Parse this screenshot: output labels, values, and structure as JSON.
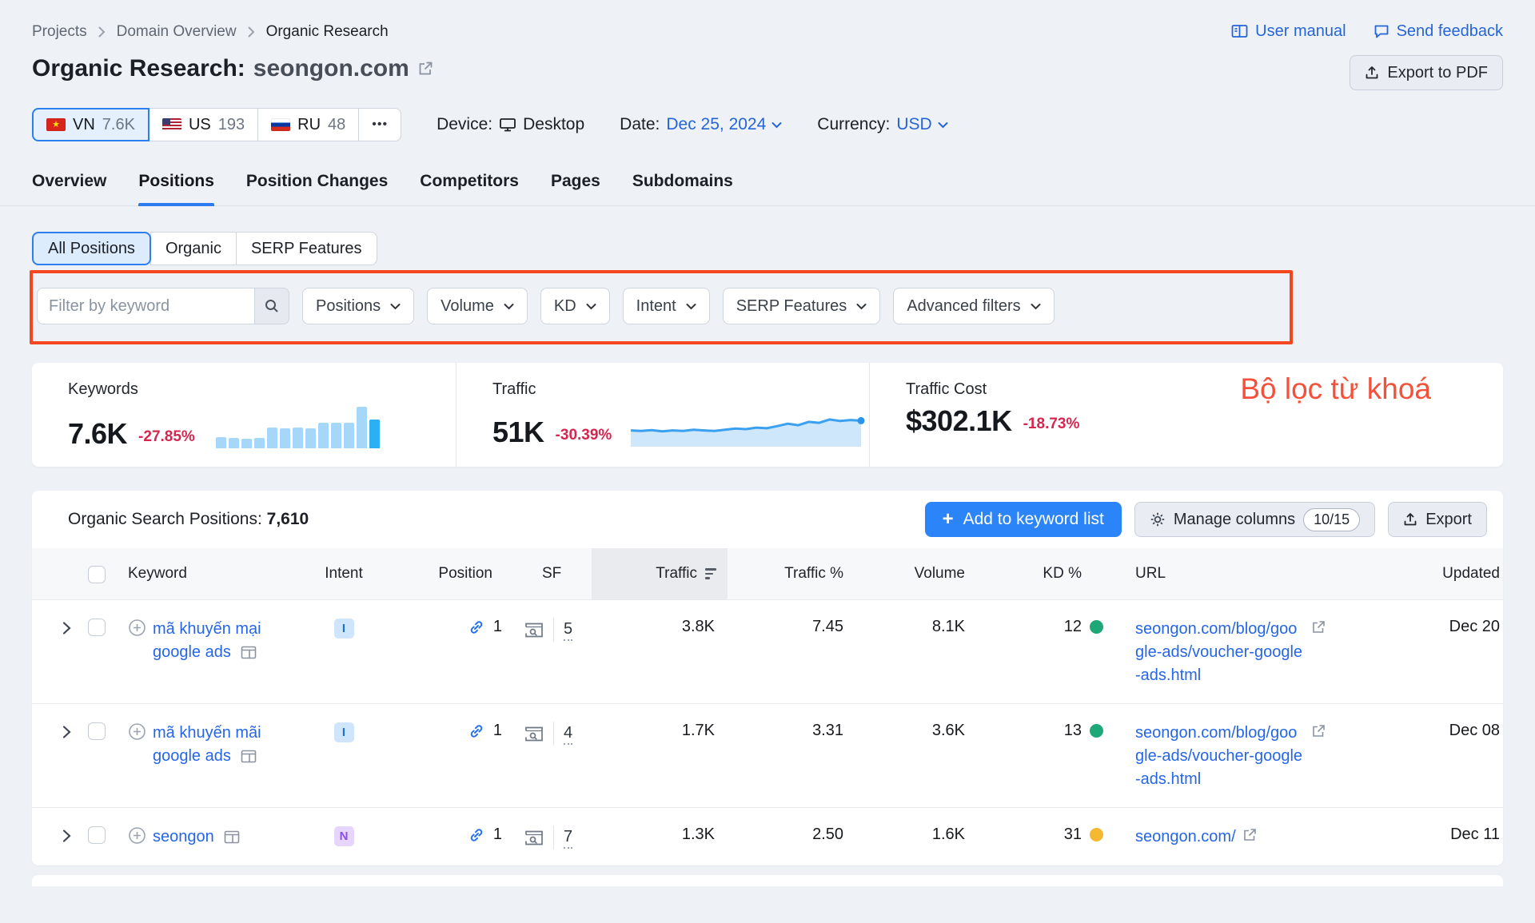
{
  "colors": {
    "accent_blue": "#2b7af0",
    "link_blue": "#2566e8",
    "primary_button_blue": "#2b84f8",
    "negative_red": "#d6264f",
    "annotation_red": "#f4471f",
    "kd_easy_green": "#1ea878",
    "kd_possible_yellow": "#f5b931",
    "intent_informational_bg": "#cfe5fb",
    "intent_informational_fg": "#1b72d0",
    "intent_navigational_bg": "#e6d5fc",
    "intent_navigational_fg": "#8a4fe8"
  },
  "header": {
    "breadcrumb": [
      "Projects",
      "Domain Overview",
      "Organic Research"
    ],
    "user_manual": "User manual",
    "send_feedback": "Send feedback",
    "title_prefix": "Organic Research:",
    "title_domain": "seongon.com",
    "export_pdf": "Export to PDF",
    "countries": [
      {
        "code": "VN",
        "value": "7.6K"
      },
      {
        "code": "US",
        "value": "193"
      },
      {
        "code": "RU",
        "value": "48"
      }
    ],
    "more_label": "•••",
    "device_label": "Device:",
    "device_value": "Desktop",
    "date_label": "Date:",
    "date_value": "Dec 25, 2024",
    "currency_label": "Currency:",
    "currency_value": "USD"
  },
  "nav": {
    "tabs": [
      "Overview",
      "Positions",
      "Position Changes",
      "Competitors",
      "Pages",
      "Subdomains"
    ]
  },
  "segmented": [
    "All Positions",
    "Organic",
    "SERP Features"
  ],
  "filters": {
    "keyword_placeholder": "Filter by keyword",
    "dropdowns": [
      "Positions",
      "Volume",
      "KD",
      "Intent",
      "SERP Features",
      "Advanced filters"
    ]
  },
  "annotation": {
    "text": "Bộ lọc từ khoá"
  },
  "stats": {
    "keywords": {
      "label": "Keywords",
      "value": "7.6K",
      "change": "-27.85%"
    },
    "traffic": {
      "label": "Traffic",
      "value": "51K",
      "change": "-30.39%"
    },
    "traffic_cost": {
      "label": "Traffic Cost",
      "value": "$302.1K",
      "change": "-18.73%"
    }
  },
  "chart_data": [
    {
      "type": "bar",
      "name": "keywords-trend-sparkline",
      "values": [
        27,
        25,
        23,
        25,
        50,
        48,
        50,
        48,
        62,
        62,
        62,
        100,
        69
      ],
      "bar_color": "#a6d7f8",
      "last_bar_color": "#2bb0f4"
    },
    {
      "type": "area",
      "name": "traffic-trend-sparkline",
      "values": [
        38,
        36,
        39,
        35,
        38,
        36,
        40,
        38,
        36,
        40,
        44,
        42,
        47,
        45,
        52,
        60,
        55,
        66,
        63,
        74,
        69,
        72,
        70
      ],
      "line_color": "#3aa0f0",
      "fill_color": "#cfe7fb"
    }
  ],
  "table": {
    "title_label": "Organic Search Positions:",
    "title_count": "7,610",
    "add_plus": "+",
    "add_button": "Add to keyword list",
    "manage_columns": "Manage columns",
    "manage_columns_badge": "10/15",
    "export_button": "Export",
    "columns": [
      "Keyword",
      "Intent",
      "Position",
      "SF",
      "Traffic",
      "Traffic %",
      "Volume",
      "KD %",
      "URL",
      "Updated"
    ],
    "rows": [
      {
        "keyword": "mã khuyến mại google ads",
        "intent": "I",
        "position": "1",
        "sf": "5",
        "traffic": "3.8K",
        "traffic_pct": "7.45",
        "volume": "8.1K",
        "kd": "12",
        "kd_color": "#1ea878",
        "url": "seongon.com/blog/google-ads/voucher-google-ads.html",
        "updated": "Dec 20"
      },
      {
        "keyword": "mã khuyến mãi google ads",
        "intent": "I",
        "position": "1",
        "sf": "4",
        "traffic": "1.7K",
        "traffic_pct": "3.31",
        "volume": "3.6K",
        "kd": "13",
        "kd_color": "#1ea878",
        "url": "seongon.com/blog/google-ads/voucher-google-ads.html",
        "updated": "Dec 08"
      },
      {
        "keyword": "seongon",
        "intent": "N",
        "position": "1",
        "sf": "7",
        "traffic": "1.3K",
        "traffic_pct": "2.50",
        "volume": "1.6K",
        "kd": "31",
        "kd_color": "#f5b931",
        "url": "seongon.com/",
        "updated": "Dec 11"
      }
    ]
  }
}
